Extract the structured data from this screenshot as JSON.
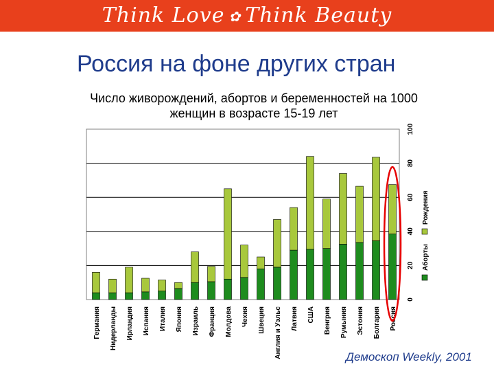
{
  "banner": {
    "left": "Think Love",
    "right": "Think Beauty",
    "color": "#e8401c"
  },
  "slide_title": "Россия на фоне других стран",
  "source": "Демоскоп Weekly, 2001",
  "colors": {
    "births": "#1e8c1e",
    "abortions": "#a8c83c",
    "highlight": "#e60000"
  },
  "chart_data": {
    "type": "bar",
    "stacked": true,
    "title": "Число живорождений, абортов и беременностей на 1000 женщин в возрасте 15-19 лет",
    "xlabel": "",
    "ylabel": "",
    "ylim": [
      0,
      100
    ],
    "yticks": [
      0,
      20,
      40,
      60,
      80,
      100
    ],
    "grid": true,
    "legend": "right",
    "categories": [
      "Германия",
      "Нидерланды",
      "Ирландия",
      "Испания",
      "Италия",
      "Япония",
      "Израиль",
      "Франция",
      "Молдова",
      "Чехия",
      "Швеция",
      "Англия и Уэльс",
      "Латвия",
      "США",
      "Венгрия",
      "Румыния",
      "Эстония",
      "Болгария",
      "Россия"
    ],
    "series": [
      {
        "name": "Рождения",
        "values": [
          4,
          4,
          4,
          4.5,
          5,
          6.5,
          10,
          10.5,
          12,
          13,
          18,
          19,
          29,
          29.5,
          30,
          32.5,
          33.5,
          34.5,
          38.5
        ]
      },
      {
        "name": "Аборты",
        "values": [
          12,
          8,
          15,
          8,
          6.5,
          3.5,
          18,
          9,
          53,
          19,
          7,
          28,
          25,
          54.5,
          29,
          41.5,
          33,
          49,
          29
        ]
      }
    ],
    "highlight": "Россия"
  }
}
